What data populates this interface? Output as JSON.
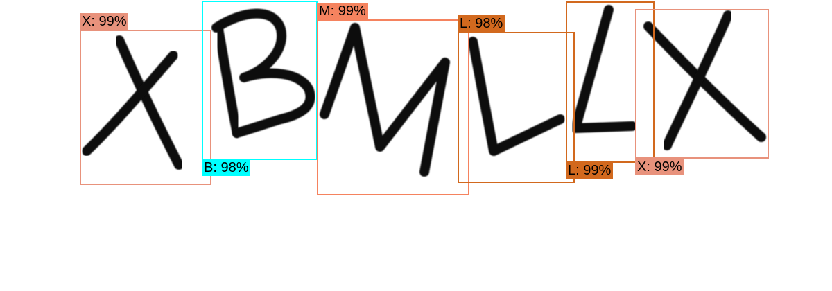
{
  "detections": [
    {
      "label": "X: 99%",
      "color": "#E8927C"
    },
    {
      "label": "B: 98%",
      "color": "#00FFFF"
    },
    {
      "label": "M: 99%",
      "color": "#F5835F"
    },
    {
      "label": "L: 98%",
      "color": "#D2691E"
    },
    {
      "label": "L: 99%",
      "color": "#D2691E"
    },
    {
      "label": "X: 99%",
      "color": "#E8927C"
    }
  ]
}
